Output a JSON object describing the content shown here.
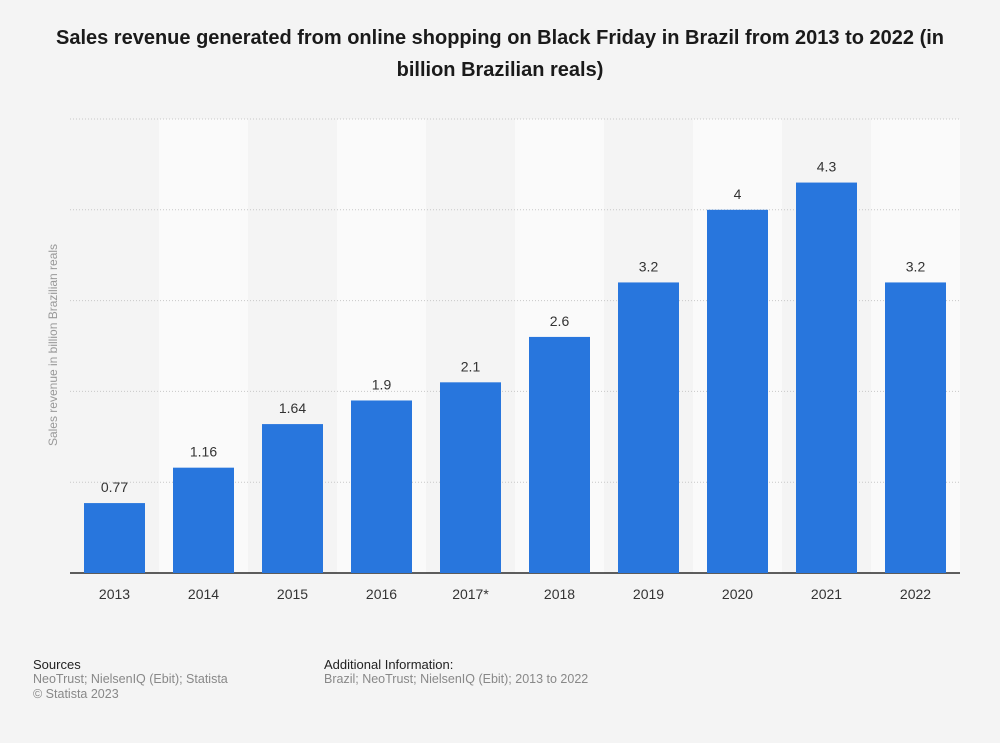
{
  "chart_data": {
    "type": "bar",
    "title": "Sales revenue generated from online shopping on Black Friday in Brazil from 2013 to 2022 (in billion Brazilian reals)",
    "ylabel": "Sales revenue in billion Brazilian reals",
    "xlabel": "",
    "categories": [
      "2013",
      "2014",
      "2015",
      "2016",
      "2017*",
      "2018",
      "2019",
      "2020",
      "2021",
      "2022"
    ],
    "values": [
      0.77,
      1.16,
      1.64,
      1.9,
      2.1,
      2.6,
      3.2,
      4,
      4.3,
      3.2
    ],
    "value_labels": [
      "0.77",
      "1.16",
      "1.64",
      "1.9",
      "2.1",
      "2.6",
      "3.2",
      "4",
      "4.3",
      "3.2"
    ],
    "ylim": [
      0,
      5
    ],
    "grid": true,
    "bar_color": "#2876dd"
  },
  "footer": {
    "sources_heading": "Sources",
    "sources_line1": "NeoTrust; NielsenIQ (Ebit); Statista",
    "sources_line2": "© Statista 2023",
    "info_heading": "Additional Information:",
    "info_line1": "Brazil; NeoTrust; NielsenIQ (Ebit); 2013 to 2022"
  }
}
